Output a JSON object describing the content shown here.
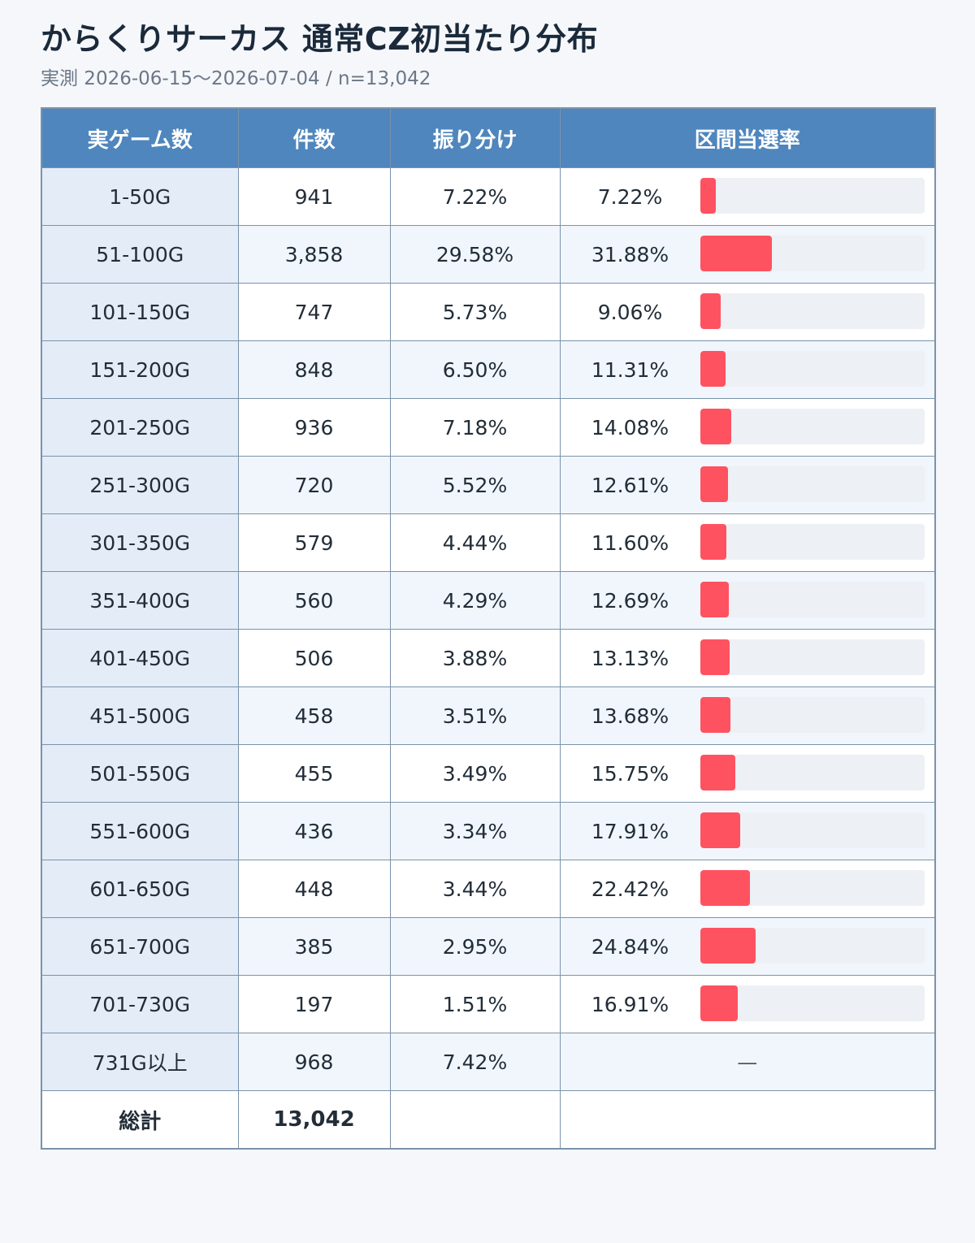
{
  "title": "からくりサーカス 通常CZ初当たり分布",
  "subtitle": "実測 2026-06-15〜2026-07-04 / n=13,042",
  "headers": [
    "実ゲーム数",
    "件数",
    "振り分け",
    "区間当選率"
  ],
  "rows": [
    {
      "range": "1-50G",
      "count": "941",
      "share": "7.22%",
      "rate": "7.22%",
      "rate_value": 7.22
    },
    {
      "range": "51-100G",
      "count": "3,858",
      "share": "29.58%",
      "rate": "31.88%",
      "rate_value": 31.88
    },
    {
      "range": "101-150G",
      "count": "747",
      "share": "5.73%",
      "rate": "9.06%",
      "rate_value": 9.06
    },
    {
      "range": "151-200G",
      "count": "848",
      "share": "6.50%",
      "rate": "11.31%",
      "rate_value": 11.31
    },
    {
      "range": "201-250G",
      "count": "936",
      "share": "7.18%",
      "rate": "14.08%",
      "rate_value": 14.08
    },
    {
      "range": "251-300G",
      "count": "720",
      "share": "5.52%",
      "rate": "12.61%",
      "rate_value": 12.61
    },
    {
      "range": "301-350G",
      "count": "579",
      "share": "4.44%",
      "rate": "11.60%",
      "rate_value": 11.6
    },
    {
      "range": "351-400G",
      "count": "560",
      "share": "4.29%",
      "rate": "12.69%",
      "rate_value": 12.69
    },
    {
      "range": "401-450G",
      "count": "506",
      "share": "3.88%",
      "rate": "13.13%",
      "rate_value": 13.13
    },
    {
      "range": "451-500G",
      "count": "458",
      "share": "3.51%",
      "rate": "13.68%",
      "rate_value": 13.68
    },
    {
      "range": "501-550G",
      "count": "455",
      "share": "3.49%",
      "rate": "15.75%",
      "rate_value": 15.75
    },
    {
      "range": "551-600G",
      "count": "436",
      "share": "3.34%",
      "rate": "17.91%",
      "rate_value": 17.91
    },
    {
      "range": "601-650G",
      "count": "448",
      "share": "3.44%",
      "rate": "22.42%",
      "rate_value": 22.42
    },
    {
      "range": "651-700G",
      "count": "385",
      "share": "2.95%",
      "rate": "24.84%",
      "rate_value": 24.84
    },
    {
      "range": "701-730G",
      "count": "197",
      "share": "1.51%",
      "rate": "16.91%",
      "rate_value": 16.91
    },
    {
      "range": "731G以上",
      "count": "968",
      "share": "7.42%",
      "rate": "—",
      "rate_value": null
    }
  ],
  "total": {
    "label": "総計",
    "count": "13,042"
  },
  "colors": {
    "header_bg": "#4f86bd",
    "bar": "#ff5260",
    "track": "#edf0f4"
  }
}
